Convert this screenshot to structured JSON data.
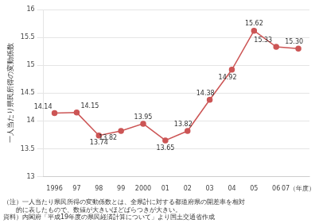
{
  "chart_data": {
    "type": "line",
    "categories": [
      "1996",
      "97",
      "98",
      "99",
      "2000",
      "01",
      "02",
      "03",
      "04",
      "05",
      "06",
      "07（年度）"
    ],
    "values": [
      14.14,
      14.15,
      13.74,
      13.82,
      13.95,
      13.65,
      13.82,
      14.38,
      14.92,
      15.62,
      15.33,
      15.3
    ],
    "value_labels": [
      "14.14",
      "14.15",
      "13.74",
      "13.82",
      "13.95",
      "13.65",
      "13.82",
      "14.38",
      "14.92",
      "15.62",
      "15.33",
      "15.30"
    ],
    "data_labels": true,
    "color": "#cc5555",
    "marker": "circle",
    "ylim": [
      13,
      16
    ],
    "yticks": [
      13,
      13.5,
      14,
      14.5,
      15,
      15.5,
      16
    ],
    "grid": true,
    "y_label": "一人当たり県民所得の変動係数",
    "annotations": [
      "（注）一人当たり県民所得の変動係数とは、全県計に対する都道府県の開差率を相対",
      "　　的に表したもので、数値が大きいほどばらつきが大きい。",
      "資料）内閣府「平成19年度の県民経済計算について」より国土交通省作成"
    ]
  }
}
